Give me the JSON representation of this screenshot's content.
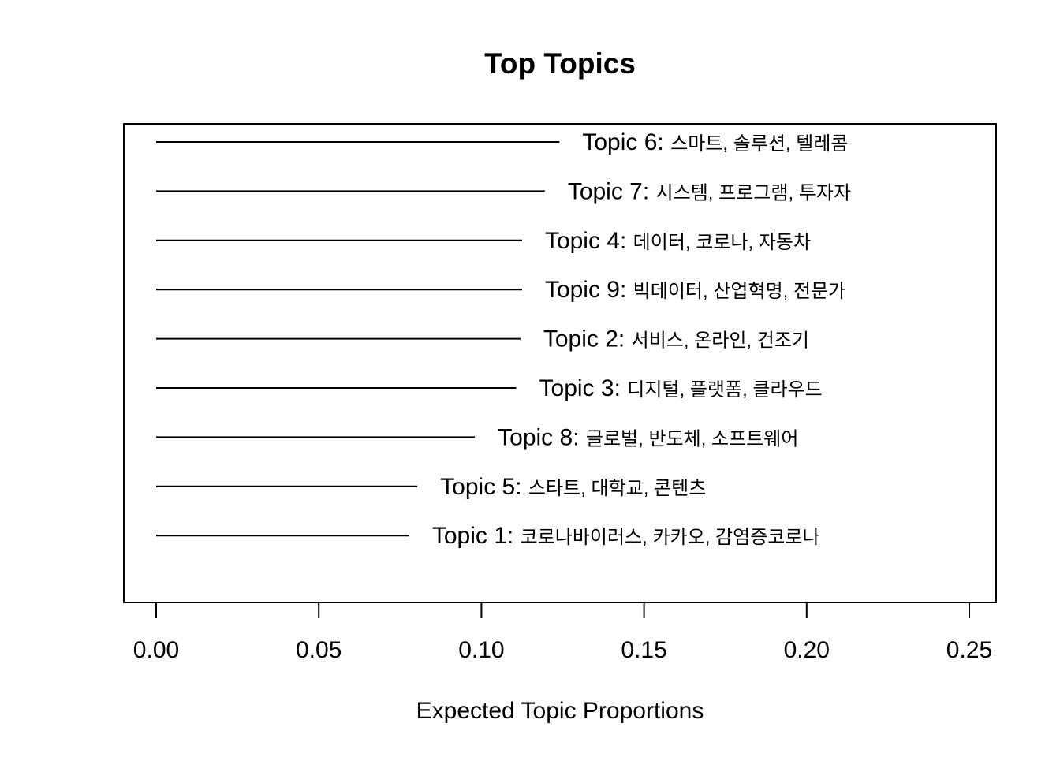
{
  "chart_data": {
    "type": "bar",
    "title": "Top Topics",
    "xlabel": "Expected Topic Proportions",
    "ylabel": "",
    "xlim": [
      0,
      0.25
    ],
    "x_ticks": [
      "0.00",
      "0.05",
      "0.10",
      "0.15",
      "0.20",
      "0.25"
    ],
    "orientation": "horizontal",
    "grid": false,
    "series": [
      {
        "categories": [
          "Topic 6",
          "Topic 7",
          "Topic 4",
          "Topic 9",
          "Topic 2",
          "Topic 3",
          "Topic 8",
          "Topic 5",
          "Topic 1"
        ],
        "words": [
          "스마트, 솔루션, 텔레콤",
          "시스템, 프로그램, 투자자",
          "데이터, 코로나, 자동차",
          "빅데이터, 산업혁명, 전문가",
          "서비스, 온라인, 건조기",
          "디지털, 플랫폼, 클라우드",
          "글로벌, 반도체, 소프트웨어",
          "스타트, 대학교, 콘텐츠",
          "코로나바이러스, 카카오, 감염증코로나"
        ],
        "values": [
          0.124,
          0.1195,
          0.1125,
          0.1125,
          0.112,
          0.1107,
          0.098,
          0.0803,
          0.0778
        ]
      }
    ]
  }
}
